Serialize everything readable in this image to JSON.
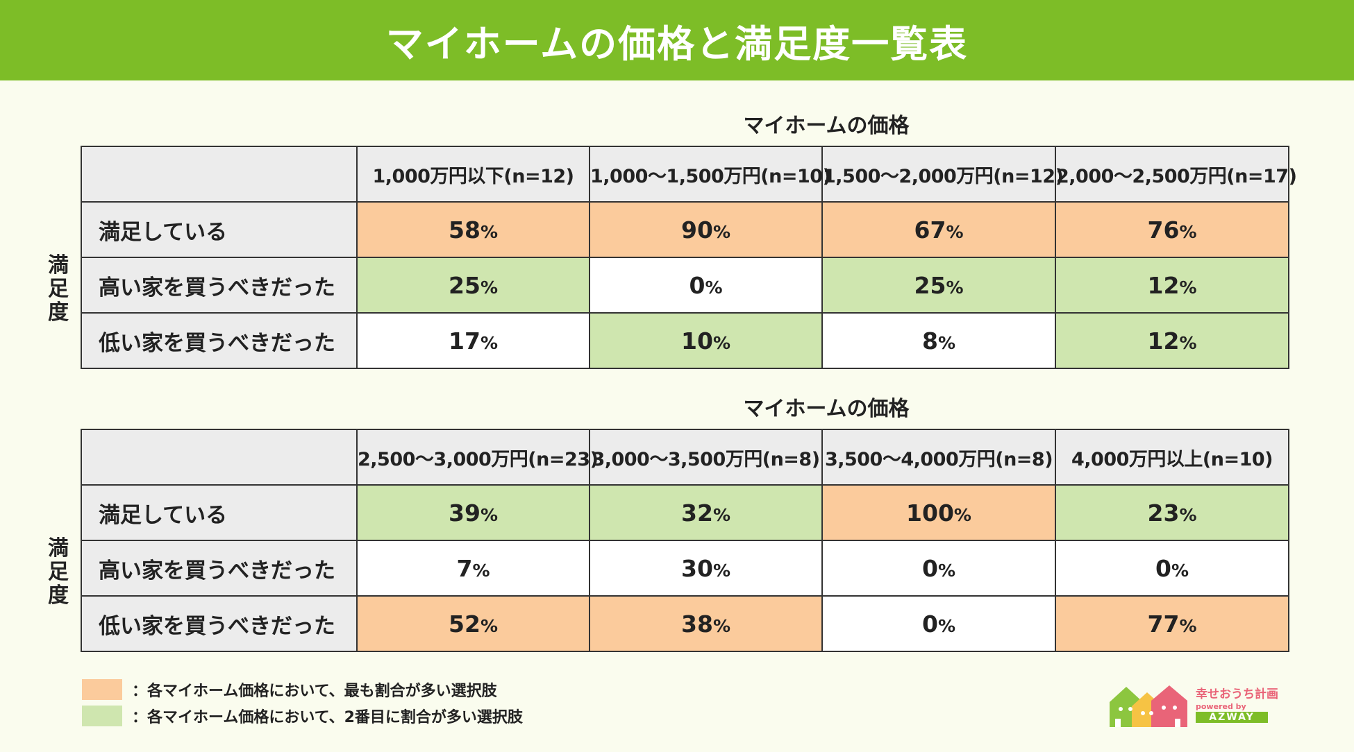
{
  "title": "マイホームの価格と満足度一覧表",
  "side_label": [
    "満",
    "足",
    "度"
  ],
  "legend": {
    "first": "：各マイホーム価格において、最も割合が多い選択肢",
    "second": "：各マイホーム価格において、2番目に割合が多い選択肢"
  },
  "colors": {
    "header": "#7dbd27",
    "rank1": "#fbcb9c",
    "rank2": "#cfe6af",
    "background": "#fafcee"
  },
  "logo": {
    "name": "幸せおうち計画",
    "powered": "powered by",
    "brand": "AZWAY"
  },
  "chart_data": [
    {
      "type": "table",
      "title": "マイホームの価格",
      "ylabel": "満足度",
      "categories": [
        "1,000万円以下(n=12)",
        "1,000〜1,500万円(n=10)",
        "1,500〜2,000万円(n=12)",
        "2,000〜2,500万円(n=17)"
      ],
      "rows": [
        {
          "label": "満足している",
          "values": [
            "58",
            "90",
            "67",
            "76"
          ],
          "ranks": [
            1,
            1,
            1,
            1
          ]
        },
        {
          "label": "高い家を買うべきだった",
          "values": [
            "25",
            "0",
            "25",
            "12"
          ],
          "ranks": [
            2,
            0,
            2,
            2
          ]
        },
        {
          "label": "低い家を買うべきだった",
          "values": [
            "17",
            "10",
            "8",
            "12"
          ],
          "ranks": [
            0,
            2,
            0,
            2
          ]
        }
      ],
      "unit": "%"
    },
    {
      "type": "table",
      "title": "マイホームの価格",
      "ylabel": "満足度",
      "categories": [
        "2,500〜3,000万円(n=23)",
        "3,000〜3,500万円(n=8)",
        "3,500〜4,000万円(n=8)",
        "4,000万円以上(n=10)"
      ],
      "rows": [
        {
          "label": "満足している",
          "values": [
            "39",
            "32",
            "100",
            "23"
          ],
          "ranks": [
            2,
            2,
            1,
            2
          ]
        },
        {
          "label": "高い家を買うべきだった",
          "values": [
            "7",
            "30",
            "0",
            "0"
          ],
          "ranks": [
            0,
            0,
            0,
            0
          ]
        },
        {
          "label": "低い家を買うべきだった",
          "values": [
            "52",
            "38",
            "0",
            "77"
          ],
          "ranks": [
            1,
            1,
            0,
            1
          ]
        }
      ],
      "unit": "%"
    }
  ]
}
